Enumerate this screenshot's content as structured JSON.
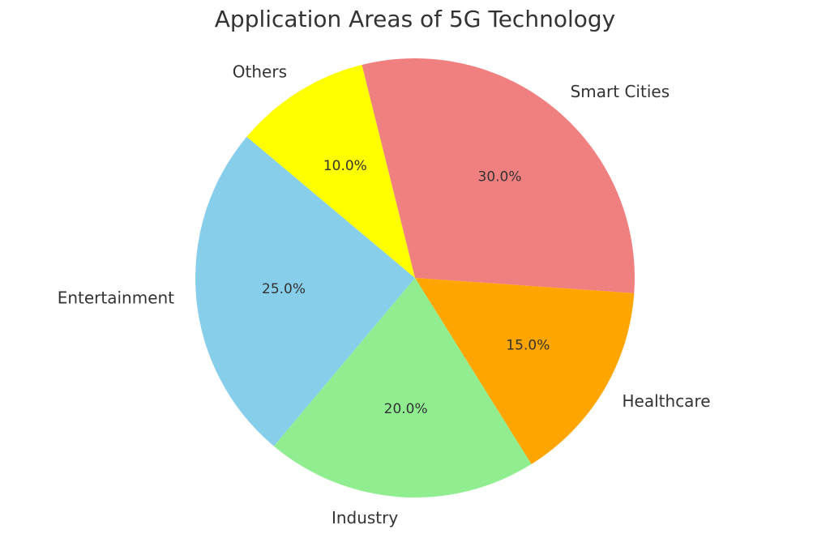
{
  "chart_data": {
    "type": "pie",
    "title": "Application Areas of 5G Technology",
    "categories": [
      "Smart Cities",
      "Healthcare",
      "Industry",
      "Entertainment",
      "Others"
    ],
    "values": [
      30,
      15,
      20,
      25,
      10
    ],
    "value_labels": [
      "30.0%",
      "15.0%",
      "20.0%",
      "25.0%",
      "10.0%"
    ],
    "colors": [
      "#f08080",
      "#ffa500",
      "#90ee90",
      "#87ceeb",
      "#ffff00"
    ]
  }
}
